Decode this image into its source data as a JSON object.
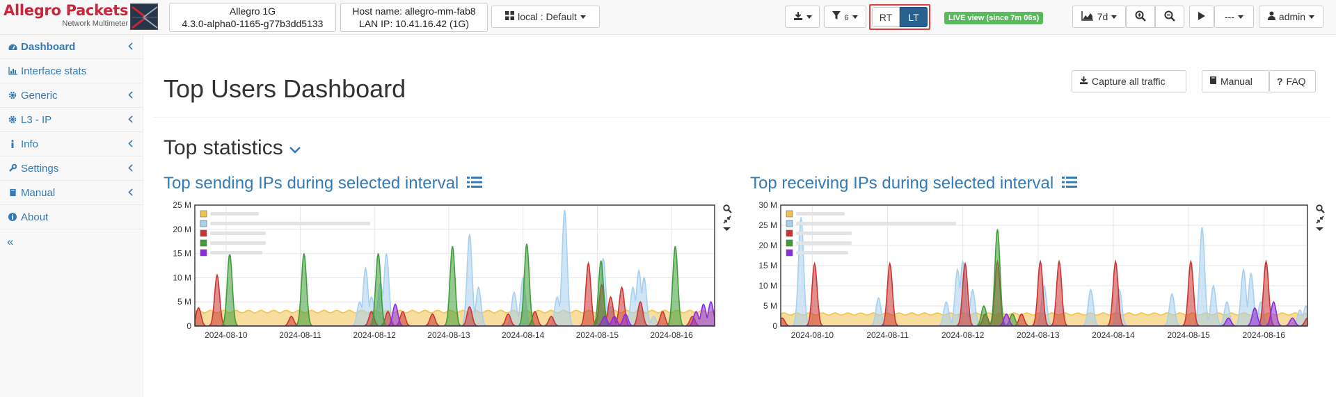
{
  "brand": {
    "name": "Allegro Packets",
    "subtitle": "Network Multimeter"
  },
  "device": {
    "model": "Allegro 1G",
    "version": "4.3.0-alpha0-1165-g77b3dd5133"
  },
  "host": {
    "hostname": "Host name: allegro-mm-fab8",
    "lan_ip": "LAN IP: 10.41.16.42 (1G)"
  },
  "toolbar": {
    "profile_label": "local : Default",
    "filter_count": "6",
    "rt_label": "RT",
    "lt_label": "LT",
    "live_badge": "LIVE view (since 7m 06s)",
    "range_label": "7d",
    "interval_label": "---",
    "user_label": "admin"
  },
  "sidebar": {
    "items": [
      {
        "label": "Dashboard",
        "icon": "tachometer-icon",
        "active": true,
        "expandable": true
      },
      {
        "label": "Interface stats",
        "icon": "bar-chart-icon",
        "active": false,
        "expandable": false
      },
      {
        "label": "Generic",
        "icon": "gear-icon",
        "active": false,
        "expandable": true
      },
      {
        "label": "L3 - IP",
        "icon": "gear-icon",
        "active": false,
        "expandable": true
      },
      {
        "label": "Info",
        "icon": "info-icon",
        "active": false,
        "expandable": true
      },
      {
        "label": "Settings",
        "icon": "wrench-icon",
        "active": false,
        "expandable": true
      },
      {
        "label": "Manual",
        "icon": "book-icon",
        "active": false,
        "expandable": true
      },
      {
        "label": "About",
        "icon": "info-circle-icon",
        "active": false,
        "expandable": false
      }
    ],
    "collapse_label": "«"
  },
  "main": {
    "title": "Top Users Dashboard",
    "capture_label": "Capture all traffic",
    "manual_label": "Manual",
    "faq_label": "FAQ",
    "section_title": "Top statistics"
  },
  "colors": {
    "yellow": "#f0c24e",
    "lightblue": "#a8d0ee",
    "red": "#cc3333",
    "green": "#3e9c39",
    "purple": "#8a2be2",
    "link": "#337ab7"
  },
  "chart_data": [
    {
      "type": "area",
      "title": "Top sending IPs during selected interval",
      "x_ticks": [
        "2024-08-10",
        "2024-08-11",
        "2024-08-12",
        "2024-08-13",
        "2024-08-14",
        "2024-08-15",
        "2024-08-16"
      ],
      "y_ticks": [
        "0",
        "5 M",
        "10 M",
        "15 M",
        "20 M",
        "25 M"
      ],
      "ylim": [
        0,
        25
      ],
      "xlim": [
        0,
        7
      ],
      "legend": "top-left",
      "grid": true,
      "series": [
        {
          "color": "#f0c24e",
          "baseline": 3,
          "peaks": []
        },
        {
          "color": "#a8d0ee",
          "peaks": [
            [
              2.22,
              5
            ],
            [
              2.3,
              12
            ],
            [
              2.38,
              6
            ],
            [
              2.5,
              9
            ],
            [
              2.58,
              15
            ],
            [
              3.7,
              19
            ],
            [
              3.82,
              8
            ],
            [
              4.3,
              7
            ],
            [
              4.42,
              10
            ],
            [
              4.88,
              6
            ],
            [
              4.98,
              24
            ],
            [
              5.5,
              14
            ],
            [
              5.6,
              4
            ],
            [
              5.9,
              8
            ],
            [
              5.98,
              11.5
            ],
            [
              6.05,
              10
            ],
            [
              6.18,
              2
            ]
          ]
        },
        {
          "color": "#cc3333",
          "peaks": [
            [
              0.05,
              3.8
            ],
            [
              0.3,
              10.5
            ],
            [
              1.3,
              2
            ],
            [
              2.38,
              3
            ],
            [
              2.6,
              3
            ],
            [
              2.8,
              3
            ],
            [
              3.2,
              2.5
            ],
            [
              3.7,
              4
            ],
            [
              4.22,
              2.5
            ],
            [
              4.58,
              3
            ],
            [
              4.8,
              2
            ],
            [
              5.3,
              13
            ],
            [
              5.48,
              8.5
            ],
            [
              5.6,
              6
            ],
            [
              5.75,
              8
            ],
            [
              6.0,
              5
            ],
            [
              6.3,
              3
            ],
            [
              6.7,
              2
            ]
          ]
        },
        {
          "color": "#3e9c39",
          "peaks": [
            [
              0.47,
              15
            ],
            [
              1.47,
              15
            ],
            [
              2.47,
              15
            ],
            [
              3.47,
              16.5
            ],
            [
              4.47,
              17
            ],
            [
              5.47,
              13.5
            ],
            [
              6.47,
              16.5
            ]
          ]
        },
        {
          "color": "#8a2be2",
          "peaks": [
            [
              2.7,
              4.5
            ],
            [
              5.52,
              2
            ],
            [
              5.65,
              2
            ],
            [
              5.8,
              2.5
            ],
            [
              6.75,
              3
            ],
            [
              6.85,
              4.5
            ],
            [
              6.95,
              5
            ]
          ]
        }
      ]
    },
    {
      "type": "area",
      "title": "Top receiving IPs during selected interval",
      "x_ticks": [
        "2024-08-10",
        "2024-08-11",
        "2024-08-12",
        "2024-08-13",
        "2024-08-14",
        "2024-08-15",
        "2024-08-16"
      ],
      "y_ticks": [
        "0",
        "5 M",
        "10 M",
        "15 M",
        "20 M",
        "25 M",
        "30 M"
      ],
      "ylim": [
        0,
        30
      ],
      "xlim": [
        0,
        7
      ],
      "legend": "top-left",
      "grid": true,
      "series": [
        {
          "color": "#f0c24e",
          "baseline": 3,
          "peaks": []
        },
        {
          "color": "#a8d0ee",
          "peaks": [
            [
              0.27,
              27
            ],
            [
              1.3,
              7
            ],
            [
              2.2,
              6
            ],
            [
              2.35,
              14
            ],
            [
              2.42,
              16
            ],
            [
              2.55,
              9
            ],
            [
              3.5,
              10
            ],
            [
              4.12,
              9
            ],
            [
              4.5,
              9
            ],
            [
              5.2,
              8
            ],
            [
              5.6,
              24.5
            ],
            [
              5.75,
              10
            ],
            [
              5.93,
              6
            ],
            [
              6.15,
              14
            ],
            [
              6.25,
              13
            ],
            [
              6.38,
              6
            ],
            [
              6.9,
              4
            ],
            [
              6.98,
              5
            ]
          ]
        },
        {
          "color": "#cc3333",
          "peaks": [
            [
              0.02,
              2
            ],
            [
              0.45,
              15.5
            ],
            [
              1.45,
              15.5
            ],
            [
              2.45,
              15.5
            ],
            [
              2.72,
              3
            ],
            [
              2.88,
              16
            ],
            [
              3.2,
              3
            ],
            [
              3.45,
              16
            ],
            [
              3.7,
              16
            ],
            [
              4.45,
              16
            ],
            [
              5.45,
              16
            ],
            [
              6.45,
              16
            ],
            [
              7.0,
              2
            ]
          ]
        },
        {
          "color": "#3e9c39",
          "peaks": [
            [
              2.7,
              5
            ],
            [
              2.88,
              24
            ],
            [
              3.08,
              3
            ]
          ]
        },
        {
          "color": "#8a2be2",
          "peaks": [
            [
              3.0,
              3
            ],
            [
              5.95,
              2
            ],
            [
              6.3,
              4.5
            ],
            [
              6.55,
              6
            ],
            [
              6.8,
              2
            ]
          ]
        }
      ]
    }
  ]
}
